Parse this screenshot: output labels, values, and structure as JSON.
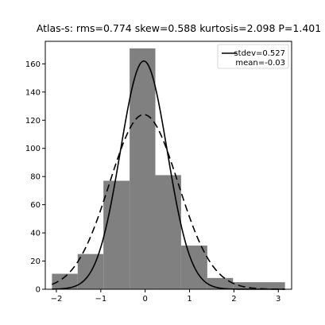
{
  "chart_data": {
    "type": "bar",
    "title": "Atlas-s:   rms=0.774  skew=0.588  kurtosis=2.098  P=1.401",
    "xlabel": "",
    "ylabel": "",
    "xlim": [
      -2.25,
      3.3
    ],
    "ylim": [
      0,
      176
    ],
    "xticks": [
      -2,
      -1,
      0,
      1,
      2,
      3
    ],
    "xtick_labels": [
      "−2",
      "−1",
      "0",
      "1",
      "2",
      "3"
    ],
    "yticks": [
      0,
      20,
      40,
      60,
      80,
      100,
      120,
      140,
      160
    ],
    "ytick_labels": [
      "0",
      "20",
      "40",
      "60",
      "80",
      "100",
      "120",
      "140",
      "160"
    ],
    "grid": false,
    "histogram": {
      "color": "#808080",
      "bins": [
        {
          "x0": -2.1,
          "x1": -1.52,
          "count": 11
        },
        {
          "x0": -1.52,
          "x1": -0.94,
          "count": 25
        },
        {
          "x0": -0.94,
          "x1": -0.35,
          "count": 77
        },
        {
          "x0": -0.35,
          "x1": 0.23,
          "count": 171
        },
        {
          "x0": 0.23,
          "x1": 0.81,
          "count": 81
        },
        {
          "x0": 0.81,
          "x1": 1.4,
          "count": 31
        },
        {
          "x0": 1.4,
          "x1": 1.98,
          "count": 8
        },
        {
          "x0": 1.98,
          "x1": 3.15,
          "count": 5
        }
      ]
    },
    "series": [
      {
        "name": "stdev=0.527",
        "style": "solid",
        "color": "#000000",
        "mean": -0.03,
        "stdev": 0.527,
        "peak": 162
      },
      {
        "name": "",
        "style": "dashed",
        "color": "#000000",
        "mean": -0.03,
        "stdev": 0.774,
        "peak": 124
      }
    ],
    "legend": {
      "placement": "top-right",
      "line1": "stdev=0.527",
      "line2": "mean=-0.03"
    }
  }
}
